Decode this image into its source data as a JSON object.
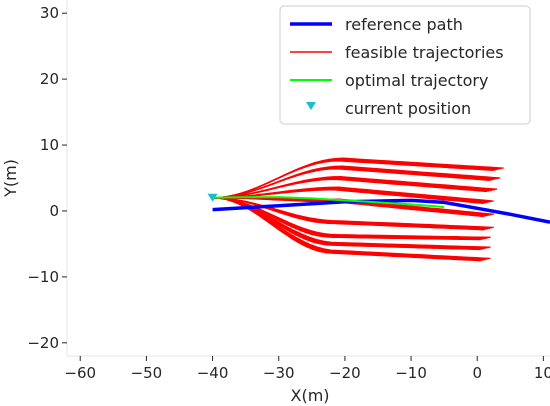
{
  "chart_data": {
    "type": "line",
    "xlabel": "X(m)",
    "ylabel": "Y(m)",
    "xlim": [
      -62,
      11
    ],
    "ylim": [
      -22,
      32
    ],
    "x_ticks": [
      -60,
      -50,
      -40,
      -30,
      -20,
      -10,
      0,
      10
    ],
    "y_ticks": [
      -20,
      -10,
      0,
      10,
      20,
      30
    ],
    "grid": false,
    "legend": {
      "placement": "top-right",
      "entries": [
        "reference path",
        "feasible trajectories",
        "optimal trajectory",
        "current position"
      ]
    },
    "colors": {
      "reference": "#0000ff",
      "feasible": "#ff0000",
      "optimal": "#00ff00",
      "position": "#17becf"
    },
    "series": [
      {
        "name": "reference path",
        "x": [
          -40,
          -30,
          -20,
          -10,
          -5,
          0,
          5,
          11
        ],
        "y": [
          0.2,
          0.8,
          1.4,
          1.6,
          1.3,
          0.4,
          -0.5,
          -1.7
        ]
      },
      {
        "name": "feasible trajectories",
        "x0": -40,
        "y0": 2,
        "end_points": [
          [
            4,
            6.5
          ],
          [
            3.5,
            5.0
          ],
          [
            3,
            3.3
          ],
          [
            2.5,
            1.5
          ],
          [
            2.5,
            -0.5
          ],
          [
            2.5,
            -2.5
          ],
          [
            2,
            -4.0
          ],
          [
            2,
            -5.5
          ],
          [
            2,
            -7.2
          ]
        ],
        "spread": [
          [
            -20,
            8.0
          ],
          [
            -20,
            6.8
          ],
          [
            -20,
            5.2
          ],
          [
            -20,
            3.6
          ],
          [
            -20,
            1.8
          ],
          [
            -20,
            -1.5
          ],
          [
            -20,
            -3.6
          ],
          [
            -20,
            -4.8
          ],
          [
            -20,
            -6.0
          ]
        ]
      },
      {
        "name": "optimal trajectory",
        "x": [
          -40,
          -35,
          -30,
          -25,
          -20,
          -15,
          -10,
          -5
        ],
        "y": [
          2.0,
          2.1,
          2.1,
          1.9,
          1.6,
          1.3,
          1.0,
          0.6
        ]
      },
      {
        "name": "current position",
        "x": [
          -40
        ],
        "y": [
          2
        ]
      }
    ]
  }
}
